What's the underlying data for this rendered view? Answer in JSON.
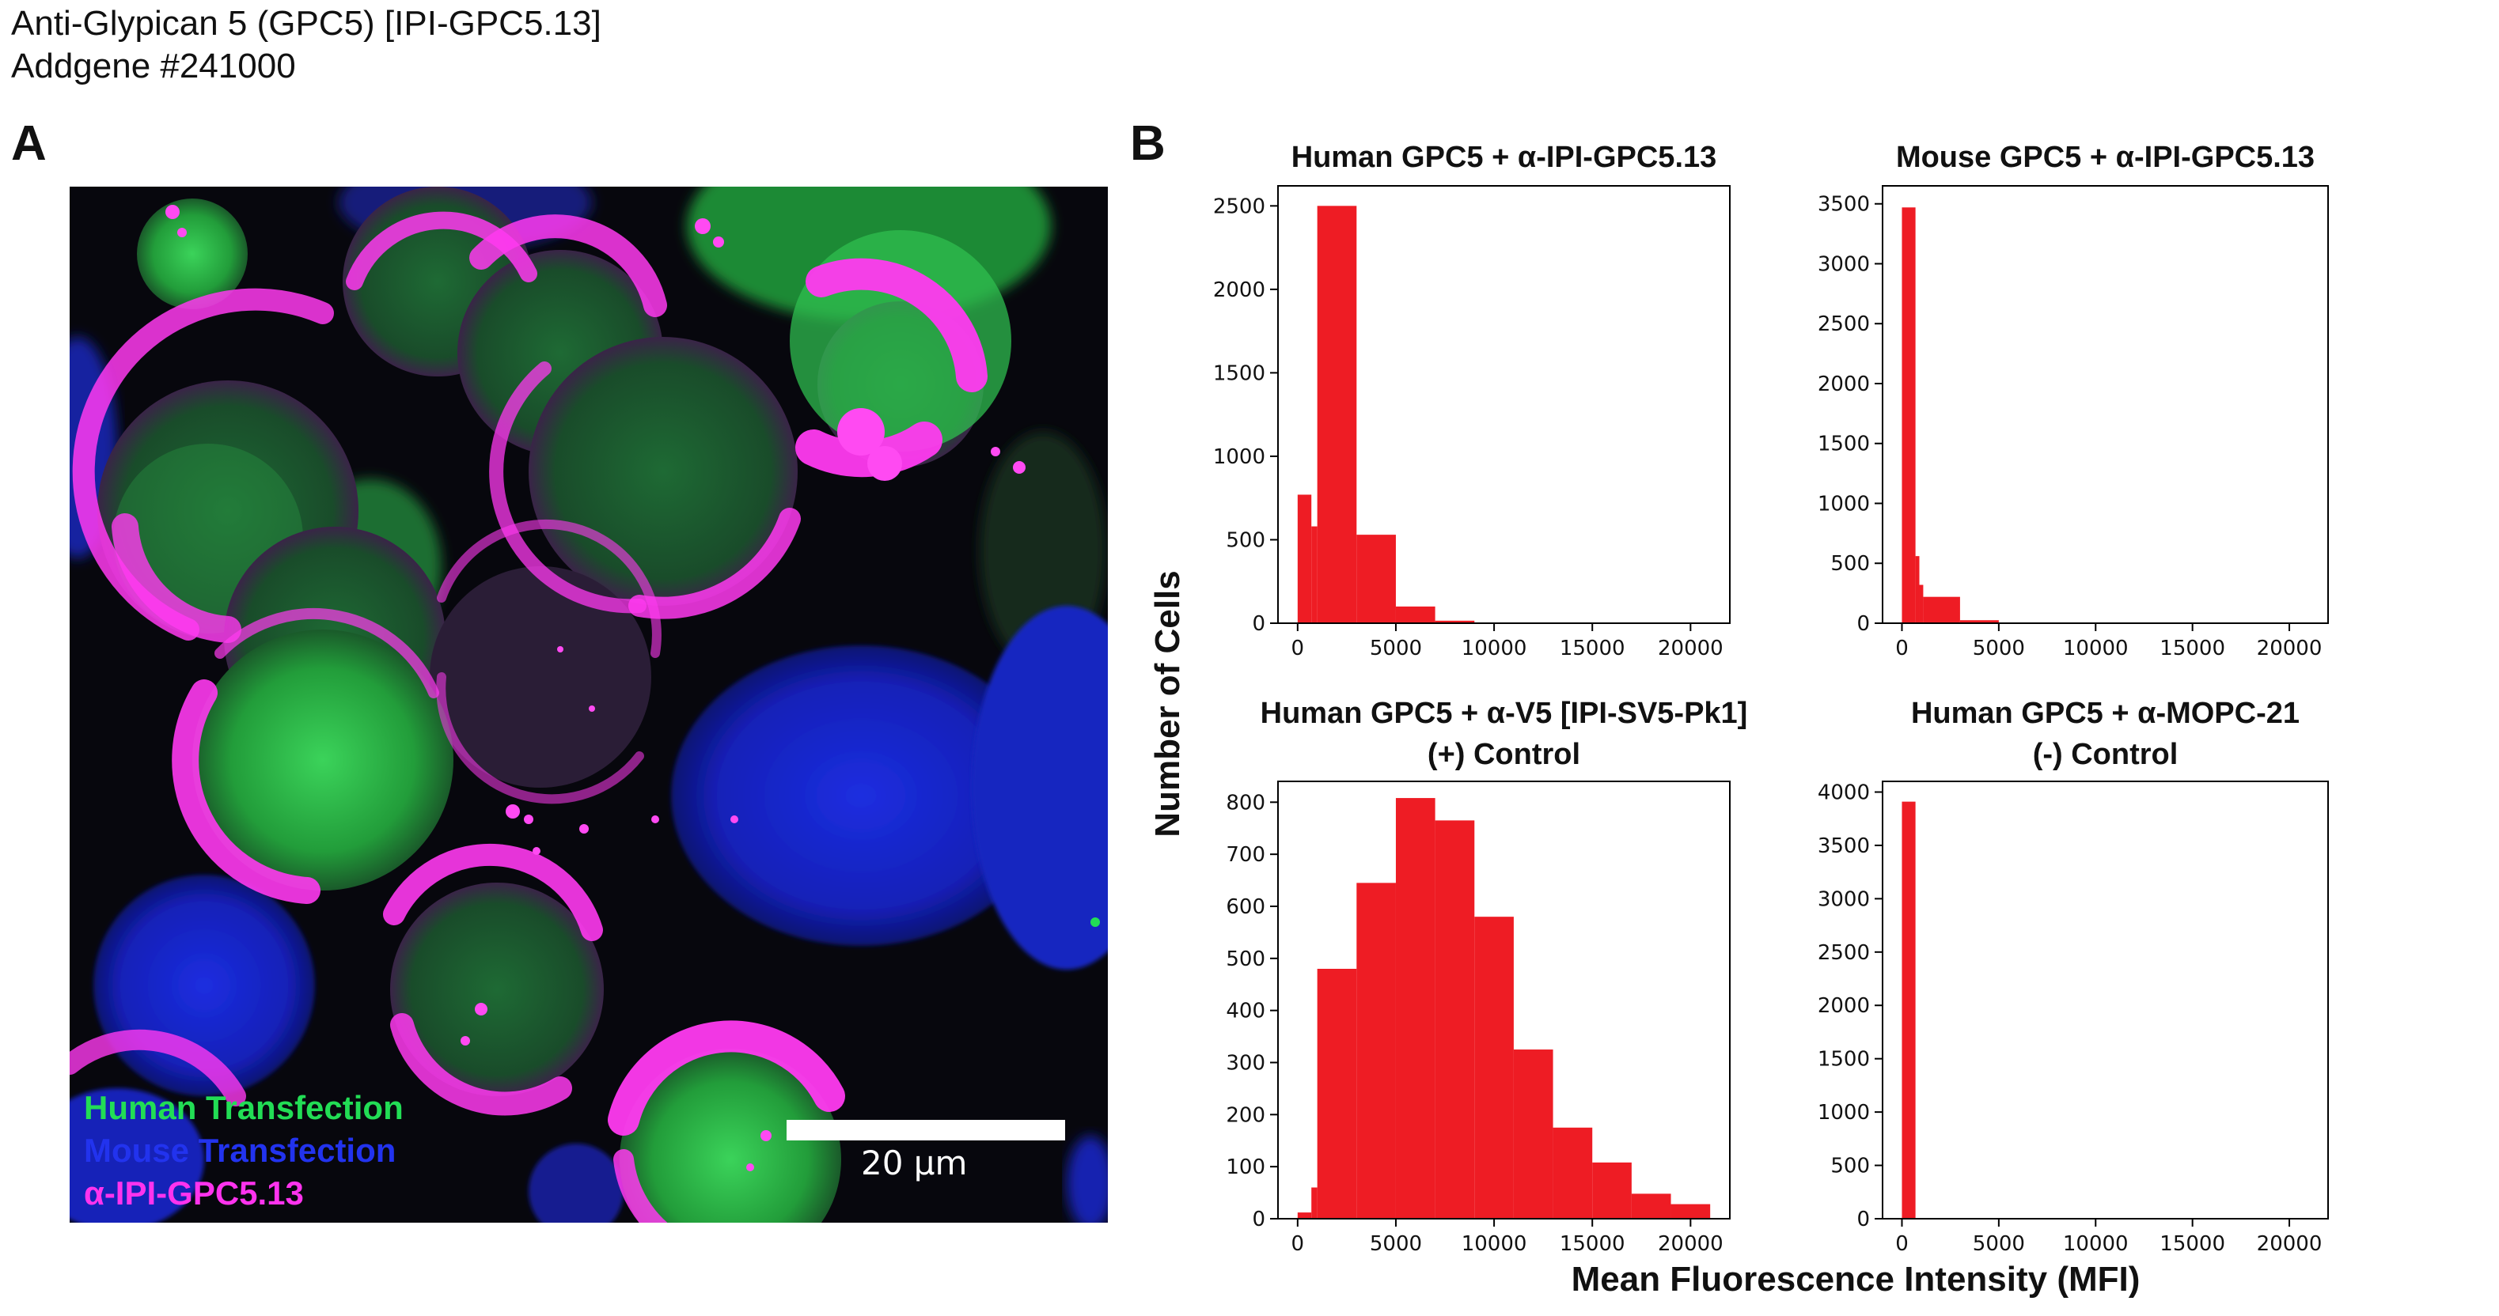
{
  "header": {
    "title": "Anti-Glypican 5 (GPC5) [IPI-GPC5.13]",
    "subtitle": "Addgene #241000"
  },
  "panel_a": {
    "letter": "A",
    "legend": [
      {
        "label": "Human Transfection",
        "color": "#22dd55"
      },
      {
        "label": "Mouse Transfection",
        "color": "#2233ee"
      },
      {
        "label": "α-IPI-GPC5.13",
        "color": "#ff33ee"
      }
    ],
    "scale_bar_label": "20 μm"
  },
  "panel_b": {
    "letter": "B",
    "ylabel": "Number of Cells",
    "xlabel": "Mean Fluorescence Intensity (MFI)"
  },
  "colors": {
    "bar": "#ee1c24",
    "axis": "#000000"
  },
  "chart_data": [
    {
      "type": "bar",
      "title": [
        "Human GPC5 + α-IPI-GPC5.13"
      ],
      "xlim": [
        -1000,
        22000
      ],
      "ylim": [
        0,
        2620
      ],
      "xticks": [
        0,
        5000,
        10000,
        15000,
        20000
      ],
      "yticks": [
        0,
        500,
        1000,
        1500,
        2000,
        2500
      ],
      "bins": [
        {
          "x0": 0,
          "x1": 700,
          "y": 770
        },
        {
          "x0": 700,
          "x1": 1000,
          "y": 580
        },
        {
          "x0": 1000,
          "x1": 3000,
          "y": 2500
        },
        {
          "x0": 3000,
          "x1": 5000,
          "y": 530
        },
        {
          "x0": 5000,
          "x1": 7000,
          "y": 100
        },
        {
          "x0": 7000,
          "x1": 9000,
          "y": 15
        },
        {
          "x0": 9000,
          "x1": 11000,
          "y": 4
        }
      ]
    },
    {
      "type": "bar",
      "title": [
        "Mouse GPC5 + α-IPI-GPC5.13"
      ],
      "xlim": [
        -1000,
        22000
      ],
      "ylim": [
        0,
        3650
      ],
      "xticks": [
        0,
        5000,
        10000,
        15000,
        20000
      ],
      "yticks": [
        0,
        500,
        1000,
        1500,
        2000,
        2500,
        3000,
        3500
      ],
      "bins": [
        {
          "x0": 0,
          "x1": 700,
          "y": 3470
        },
        {
          "x0": 700,
          "x1": 900,
          "y": 560
        },
        {
          "x0": 900,
          "x1": 1100,
          "y": 320
        },
        {
          "x0": 1100,
          "x1": 3000,
          "y": 220
        },
        {
          "x0": 3000,
          "x1": 5000,
          "y": 25
        },
        {
          "x0": 5000,
          "x1": 7000,
          "y": 6
        }
      ]
    },
    {
      "type": "bar",
      "title": [
        "Human GPC5 + α-V5 [IPI-SV5-Pk1]",
        "(+) Control"
      ],
      "xlim": [
        -1000,
        22000
      ],
      "ylim": [
        0,
        840
      ],
      "xticks": [
        0,
        5000,
        10000,
        15000,
        20000
      ],
      "yticks": [
        0,
        100,
        200,
        300,
        400,
        500,
        600,
        700,
        800
      ],
      "bins": [
        {
          "x0": 0,
          "x1": 700,
          "y": 12
        },
        {
          "x0": 700,
          "x1": 1000,
          "y": 60
        },
        {
          "x0": 1000,
          "x1": 3000,
          "y": 480
        },
        {
          "x0": 3000,
          "x1": 5000,
          "y": 645
        },
        {
          "x0": 5000,
          "x1": 7000,
          "y": 808
        },
        {
          "x0": 7000,
          "x1": 9000,
          "y": 765
        },
        {
          "x0": 9000,
          "x1": 11000,
          "y": 580
        },
        {
          "x0": 11000,
          "x1": 13000,
          "y": 325
        },
        {
          "x0": 13000,
          "x1": 15000,
          "y": 175
        },
        {
          "x0": 15000,
          "x1": 17000,
          "y": 108
        },
        {
          "x0": 17000,
          "x1": 19000,
          "y": 48
        },
        {
          "x0": 19000,
          "x1": 21000,
          "y": 28
        }
      ]
    },
    {
      "type": "bar",
      "title": [
        "Human GPC5 + α-MOPC-21",
        "(-) Control"
      ],
      "xlim": [
        -1000,
        22000
      ],
      "ylim": [
        0,
        4100
      ],
      "xticks": [
        0,
        5000,
        10000,
        15000,
        20000
      ],
      "yticks": [
        0,
        500,
        1000,
        1500,
        2000,
        2500,
        3000,
        3500,
        4000
      ],
      "bins": [
        {
          "x0": 0,
          "x1": 700,
          "y": 3910
        }
      ]
    }
  ]
}
